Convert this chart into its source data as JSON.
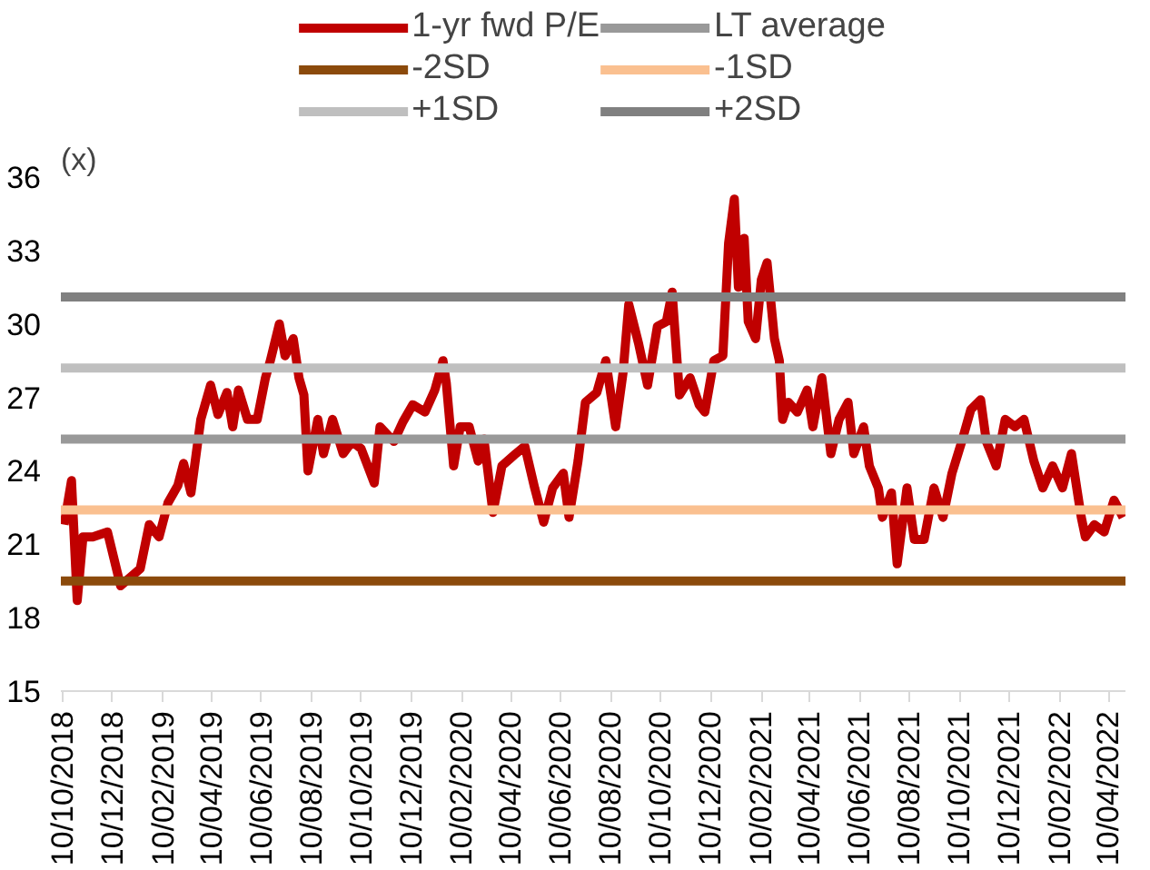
{
  "chart_data": {
    "type": "line",
    "ylabel": "(x)",
    "x": [
      "2018-10-12",
      "2018-10-21",
      "2018-10-28",
      "2018-11-04",
      "2018-11-16",
      "2018-12-04",
      "2018-12-20",
      "2019-01-13",
      "2019-01-24",
      "2019-02-05",
      "2019-02-16",
      "2019-02-28",
      "2019-03-07",
      "2019-03-16",
      "2019-03-28",
      "2019-04-09",
      "2019-04-18",
      "2019-04-29",
      "2019-05-06",
      "2019-05-13",
      "2019-05-24",
      "2019-06-05",
      "2019-06-15",
      "2019-06-21",
      "2019-07-02",
      "2019-07-09",
      "2019-07-19",
      "2019-07-26",
      "2019-08-01",
      "2019-08-06",
      "2019-08-18",
      "2019-08-25",
      "2019-09-05",
      "2019-09-18",
      "2019-09-29",
      "2019-10-10",
      "2019-10-26",
      "2019-11-02",
      "2019-11-19",
      "2019-11-30",
      "2019-12-12",
      "2019-12-27",
      "2020-01-08",
      "2020-01-18",
      "2020-01-22",
      "2020-01-31",
      "2020-02-08",
      "2020-02-19",
      "2020-03-01",
      "2020-03-08",
      "2020-03-19",
      "2020-03-30",
      "2020-04-16",
      "2020-04-27",
      "2020-05-09",
      "2020-05-20",
      "2020-05-31",
      "2020-06-13",
      "2020-06-20",
      "2020-07-01",
      "2020-07-10",
      "2020-07-24",
      "2020-08-04",
      "2020-08-16",
      "2020-08-25",
      "2020-09-01",
      "2020-09-13",
      "2020-09-24",
      "2020-10-06",
      "2020-10-17",
      "2020-10-24",
      "2020-11-02",
      "2020-11-15",
      "2020-11-26",
      "2020-12-03",
      "2020-12-14",
      "2020-12-25",
      "2021-01-01",
      "2021-01-08",
      "2021-01-13",
      "2021-01-20",
      "2021-01-25",
      "2021-02-03",
      "2021-02-10",
      "2021-02-17",
      "2021-02-26",
      "2021-03-04",
      "2021-03-08",
      "2021-03-15",
      "2021-03-26",
      "2021-04-07",
      "2021-04-14",
      "2021-04-25",
      "2021-05-06",
      "2021-05-16",
      "2021-05-27",
      "2021-06-03",
      "2021-06-15",
      "2021-06-22",
      "2021-07-03",
      "2021-07-08",
      "2021-07-19",
      "2021-07-26",
      "2021-08-07",
      "2021-08-16",
      "2021-08-28",
      "2021-09-09",
      "2021-09-20",
      "2021-10-01",
      "2021-10-13",
      "2021-10-24",
      "2021-11-05",
      "2021-11-12",
      "2021-11-24",
      "2021-12-05",
      "2021-12-17",
      "2021-12-28",
      "2022-01-09",
      "2022-01-20",
      "2022-02-01",
      "2022-02-13",
      "2022-02-24",
      "2022-03-08",
      "2022-03-13",
      "2022-03-24",
      "2022-04-05",
      "2022-04-17",
      "2022-04-28"
    ],
    "series": [
      {
        "name": "1-yr fwd P/E",
        "color": "#c00000",
        "values": [
          21.8,
          23.6,
          18.7,
          21.3,
          21.3,
          21.5,
          19.3,
          20.0,
          21.8,
          21.3,
          22.7,
          23.4,
          24.3,
          23.1,
          26.1,
          27.5,
          26.3,
          27.2,
          25.8,
          27.3,
          26.1,
          26.1,
          27.8,
          28.5,
          30.0,
          28.7,
          29.4,
          27.8,
          27.1,
          24.0,
          26.1,
          24.7,
          26.1,
          24.7,
          25.2,
          24.9,
          23.5,
          25.8,
          25.2,
          26.0,
          26.7,
          26.4,
          27.3,
          28.5,
          27.6,
          24.2,
          25.8,
          25.8,
          24.4,
          25.3,
          22.3,
          24.2,
          24.7,
          25.0,
          23.3,
          21.9,
          23.3,
          23.9,
          22.1,
          24.4,
          26.8,
          27.2,
          28.5,
          25.8,
          28.0,
          30.8,
          29.2,
          27.5,
          29.9,
          30.1,
          31.3,
          27.1,
          27.8,
          26.7,
          26.4,
          28.5,
          28.7,
          33.3,
          35.1,
          31.5,
          33.5,
          30.1,
          29.4,
          31.8,
          32.5,
          29.4,
          28.5,
          26.1,
          26.8,
          26.4,
          27.3,
          25.8,
          27.8,
          24.7,
          26.1,
          26.8,
          24.7,
          25.8,
          24.2,
          23.3,
          22.1,
          23.1,
          20.2,
          23.3,
          21.2,
          21.2,
          23.3,
          22.1,
          23.9,
          25.2,
          26.5,
          26.9,
          25.2,
          24.2,
          26.1,
          25.8,
          26.1,
          24.4,
          23.3,
          24.2,
          23.3,
          24.7,
          22.1,
          21.3,
          21.8,
          21.5,
          22.8,
          22.1
        ]
      }
    ],
    "ref_lines": [
      {
        "axis": "y",
        "value": 25.3,
        "label": "LT average",
        "color": "#999999"
      },
      {
        "axis": "y",
        "value": 19.5,
        "label": "-2SD",
        "color": "#8b4a0b"
      },
      {
        "axis": "y",
        "value": 22.4,
        "label": "-1SD",
        "color": "#fac090"
      },
      {
        "axis": "y",
        "value": 28.2,
        "label": "+1SD",
        "color": "#bfbfbf"
      },
      {
        "axis": "y",
        "value": 31.1,
        "label": "+2SD",
        "color": "#808080"
      }
    ],
    "xlim": [
      "2018-10-08",
      "2022-05-01"
    ],
    "xticks": [
      {
        "value": "2018-10-10",
        "label": "10/10/2018"
      },
      {
        "value": "2018-12-10",
        "label": "10/12/2018"
      },
      {
        "value": "2019-02-10",
        "label": "10/02/2019"
      },
      {
        "value": "2019-04-10",
        "label": "10/04/2019"
      },
      {
        "value": "2019-06-10",
        "label": "10/06/2019"
      },
      {
        "value": "2019-08-10",
        "label": "10/08/2019"
      },
      {
        "value": "2019-10-10",
        "label": "10/10/2019"
      },
      {
        "value": "2019-12-10",
        "label": "10/12/2019"
      },
      {
        "value": "2020-02-10",
        "label": "10/02/2020"
      },
      {
        "value": "2020-04-10",
        "label": "10/04/2020"
      },
      {
        "value": "2020-06-10",
        "label": "10/06/2020"
      },
      {
        "value": "2020-08-10",
        "label": "10/08/2020"
      },
      {
        "value": "2020-10-10",
        "label": "10/10/2020"
      },
      {
        "value": "2020-12-10",
        "label": "10/12/2020"
      },
      {
        "value": "2021-02-10",
        "label": "10/02/2021"
      },
      {
        "value": "2021-04-10",
        "label": "10/04/2021"
      },
      {
        "value": "2021-06-10",
        "label": "10/06/2021"
      },
      {
        "value": "2021-08-10",
        "label": "10/08/2021"
      },
      {
        "value": "2021-10-10",
        "label": "10/10/2021"
      },
      {
        "value": "2021-12-10",
        "label": "10/12/2021"
      },
      {
        "value": "2022-02-10",
        "label": "10/02/2022"
      },
      {
        "value": "2022-04-10",
        "label": "10/04/2022"
      }
    ],
    "ylim": [
      15,
      36
    ],
    "yticks": [
      15,
      18,
      21,
      24,
      27,
      30,
      33,
      36
    ],
    "legend": "top",
    "marker": "none",
    "line_style": "solid"
  }
}
